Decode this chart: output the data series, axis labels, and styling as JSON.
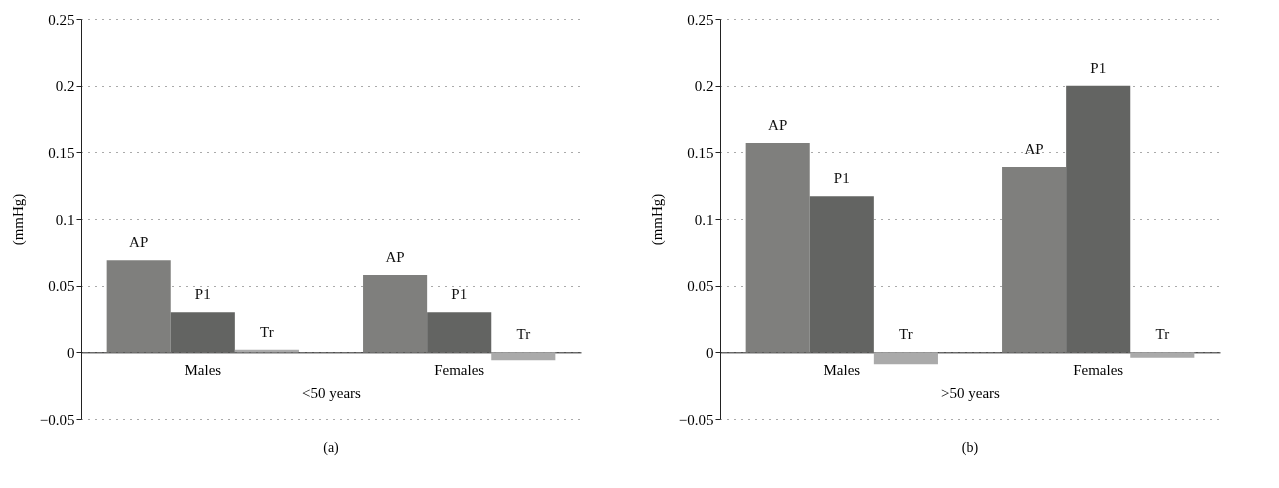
{
  "chart_data": [
    {
      "type": "bar",
      "categories": [
        "Males",
        "Females"
      ],
      "xlabel": "<50 years",
      "ylabel": "(mmHg)",
      "ylim": [
        -0.05,
        0.25
      ],
      "yticks": [
        -0.05,
        0,
        0.05,
        0.1,
        0.15,
        0.2,
        0.25
      ],
      "grid": "y",
      "legend": false,
      "annotations": [
        "(a)"
      ],
      "series": [
        {
          "name": "AP",
          "color": "#7f7f7d",
          "values": [
            0.069,
            0.058
          ]
        },
        {
          "name": "P1",
          "color": "#636462",
          "values": [
            0.03,
            0.03
          ]
        },
        {
          "name": "Tr",
          "color": "#aaaaaa",
          "values": [
            0.002,
            -0.006
          ]
        }
      ]
    },
    {
      "type": "bar",
      "categories": [
        "Males",
        "Females"
      ],
      "xlabel": ">50 years",
      "ylabel": "(mmHg)",
      "ylim": [
        -0.05,
        0.25
      ],
      "yticks": [
        -0.05,
        0,
        0.05,
        0.1,
        0.15,
        0.2,
        0.25
      ],
      "grid": "y",
      "legend": false,
      "annotations": [
        "(b)"
      ],
      "series": [
        {
          "name": "AP",
          "color": "#7f7f7d",
          "values": [
            0.157,
            0.139
          ]
        },
        {
          "name": "P1",
          "color": "#636462",
          "values": [
            0.117,
            0.2
          ]
        },
        {
          "name": "Tr",
          "color": "#aaaaaa",
          "values": [
            -0.009,
            -0.004
          ]
        }
      ]
    }
  ]
}
